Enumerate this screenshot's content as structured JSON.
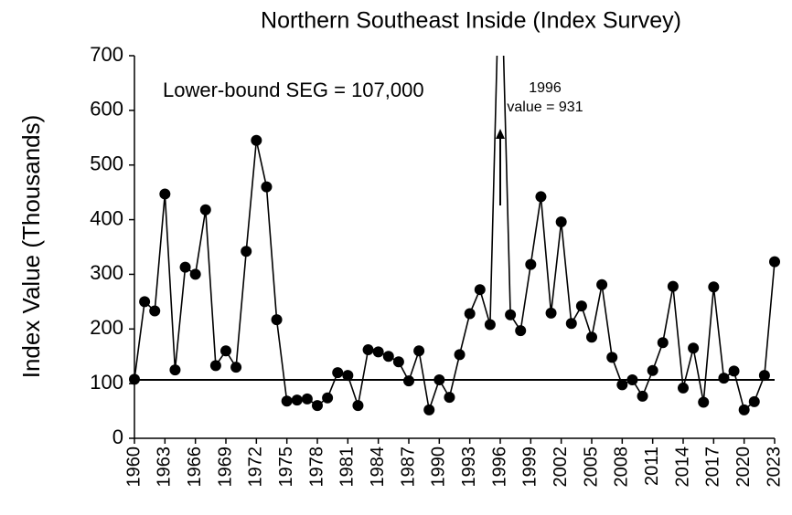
{
  "chart_data": {
    "type": "line",
    "title": "Northern Southeast Inside (Index Survey)",
    "y_label": "Index Value (Thousands)",
    "x": [
      1960,
      1961,
      1962,
      1963,
      1964,
      1965,
      1966,
      1967,
      1968,
      1969,
      1970,
      1971,
      1972,
      1973,
      1974,
      1975,
      1976,
      1977,
      1978,
      1979,
      1980,
      1981,
      1982,
      1983,
      1984,
      1985,
      1986,
      1987,
      1988,
      1989,
      1990,
      1991,
      1992,
      1993,
      1994,
      1995,
      1996,
      1997,
      1998,
      1999,
      2000,
      2001,
      2002,
      2003,
      2004,
      2005,
      2006,
      2007,
      2008,
      2009,
      2010,
      2011,
      2012,
      2013,
      2014,
      2015,
      2016,
      2017,
      2018,
      2019,
      2020,
      2021,
      2022,
      2023
    ],
    "series": [
      {
        "name": "Index Value",
        "color": "#000000",
        "values": [
          108,
          250,
          233,
          447,
          125,
          313,
          300,
          418,
          133,
          160,
          130,
          342,
          545,
          460,
          217,
          68,
          70,
          72,
          60,
          74,
          120,
          115,
          60,
          162,
          158,
          150,
          140,
          105,
          160,
          52,
          107,
          75,
          153,
          228,
          272,
          208,
          931,
          226,
          197,
          318,
          442,
          229,
          396,
          210,
          242,
          185,
          281,
          148,
          98,
          107,
          77,
          124,
          175,
          278,
          92,
          165,
          66,
          277,
          110,
          123,
          52,
          67,
          115,
          323
        ]
      }
    ],
    "xlim": [
      1960,
      2023
    ],
    "xticks": [
      1960,
      1963,
      1966,
      1969,
      1972,
      1975,
      1978,
      1981,
      1984,
      1987,
      1990,
      1993,
      1996,
      1999,
      2002,
      2005,
      2008,
      2011,
      2014,
      2017,
      2020,
      2023
    ],
    "ylim": [
      0,
      700
    ],
    "yticks": [
      0,
      100,
      200,
      300,
      400,
      500,
      600,
      700
    ],
    "reference_line": {
      "value": 107,
      "label": "Lower-bound SEG = 107,000"
    },
    "annotation": {
      "x": 1996,
      "line1": "1996",
      "line2": "value = 931"
    }
  }
}
